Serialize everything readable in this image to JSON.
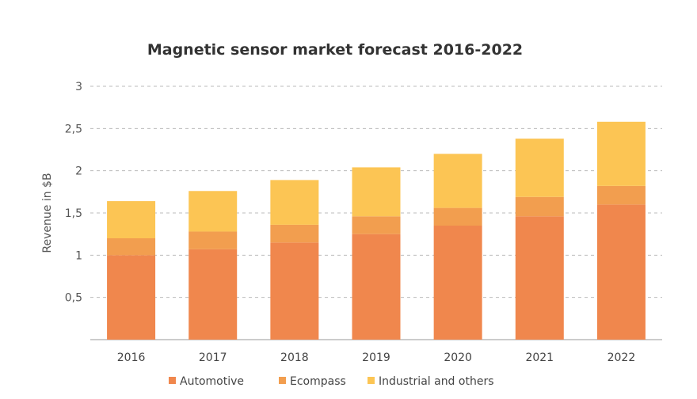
{
  "chart_data": {
    "type": "bar",
    "stacked": true,
    "title": "Magnetic sensor market forecast 2016-2022",
    "xlabel": "",
    "ylabel": "Revenue in $B",
    "ylim": [
      0,
      3
    ],
    "yticks": [
      0.5,
      1,
      1.5,
      2,
      2.5,
      3
    ],
    "ytick_labels": [
      "0,5",
      "1",
      "1,5",
      "2",
      "2,5",
      "3"
    ],
    "grid": true,
    "legend_position": "bottom",
    "categories": [
      "2016",
      "2017",
      "2018",
      "2019",
      "2020",
      "2021",
      "2022"
    ],
    "series": [
      {
        "name": "Automotive",
        "color": "#F0874D",
        "values": [
          1.0,
          1.07,
          1.15,
          1.25,
          1.35,
          1.46,
          1.6
        ]
      },
      {
        "name": "Ecompass",
        "color": "#F29E4F",
        "values": [
          0.2,
          0.21,
          0.21,
          0.21,
          0.21,
          0.23,
          0.22
        ]
      },
      {
        "name": "Industrial and others",
        "color": "#FCC554",
        "values": [
          0.44,
          0.48,
          0.53,
          0.58,
          0.64,
          0.69,
          0.76
        ]
      }
    ]
  }
}
